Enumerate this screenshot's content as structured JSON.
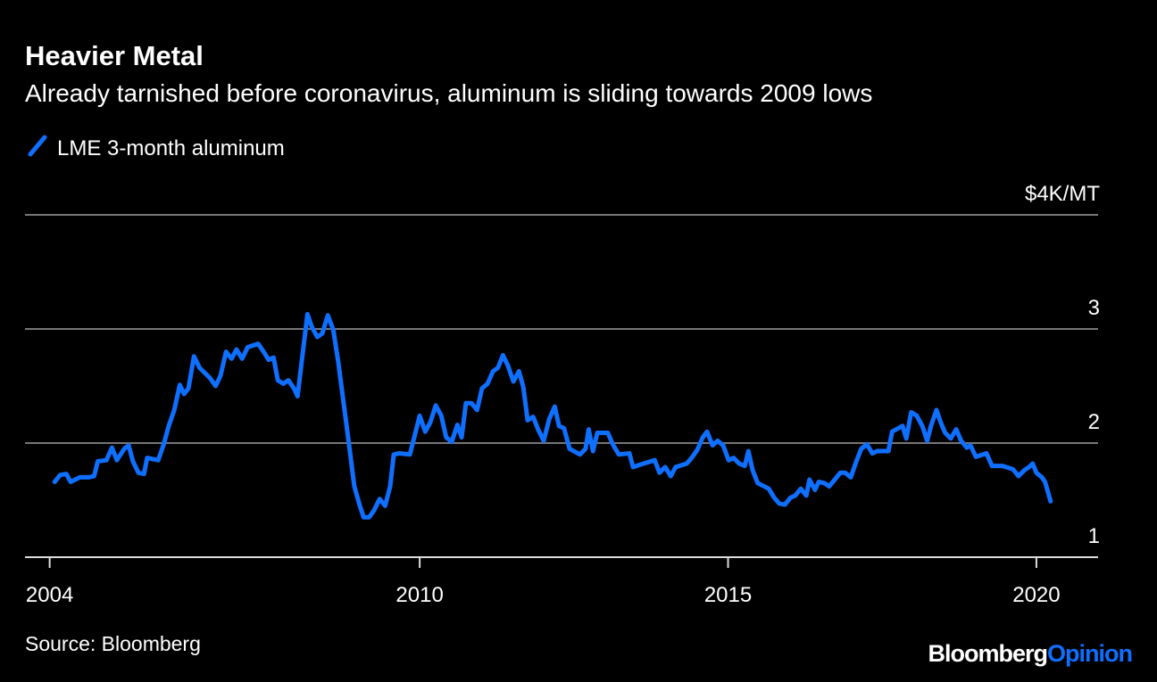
{
  "chart_data": {
    "type": "line",
    "title": "Heavier Metal",
    "subtitle": "Already tarnished before coronavirus, aluminum is sliding towards 2009 lows",
    "source": "Source: Bloomberg",
    "branding": [
      "Bloomberg",
      "Opinion"
    ],
    "x": [
      2004.08,
      2004.17,
      2004.27,
      2004.34,
      2004.49,
      2004.63,
      2004.72,
      2004.78,
      2004.92,
      2005.01,
      2005.09,
      2005.21,
      2005.28,
      2005.35,
      2005.44,
      2005.53,
      2005.58,
      2005.76,
      2005.85,
      2005.93,
      2006.02,
      2006.11,
      2006.18,
      2006.25,
      2006.34,
      2006.43,
      2006.6,
      2006.69,
      2006.77,
      2006.86,
      2006.95,
      2007.03,
      2007.12,
      2007.21,
      2007.38,
      2007.47,
      2007.55,
      2007.63,
      2007.7,
      2007.79,
      2007.87,
      2007.96,
      2008.02,
      2008.09,
      2008.18,
      2008.25,
      2008.34,
      2008.42,
      2008.51,
      2008.6,
      2008.68,
      2008.77,
      2008.86,
      2008.94,
      2009.03,
      2009.09,
      2009.18,
      2009.26,
      2009.35,
      2009.44,
      2009.52,
      2009.58,
      2009.67,
      2009.84,
      2009.93,
      2010.0,
      2010.09,
      2010.17,
      2010.26,
      2010.35,
      2010.43,
      2010.52,
      2010.61,
      2010.68,
      2010.75,
      2010.84,
      2010.93,
      2011.01,
      2011.1,
      2011.19,
      2011.27,
      2011.35,
      2011.43,
      2011.52,
      2011.61,
      2011.68,
      2011.75,
      2011.84,
      2011.92,
      2012.01,
      2012.1,
      2012.19,
      2012.26,
      2012.34,
      2012.43,
      2012.6,
      2012.69,
      2012.74,
      2012.81,
      2012.88,
      2013.05,
      2013.14,
      2013.23,
      2013.4,
      2013.46,
      2013.63,
      2013.81,
      2013.89,
      2013.98,
      2014.07,
      2014.15,
      2014.33,
      2014.41,
      2014.5,
      2014.59,
      2014.66,
      2014.75,
      2014.83,
      2014.92,
      2015.01,
      2015.09,
      2015.18,
      2015.27,
      2015.33,
      2015.4,
      2015.48,
      2015.66,
      2015.75,
      2015.83,
      2015.92,
      2016.01,
      2016.09,
      2016.18,
      2016.27,
      2016.32,
      2016.41,
      2016.47,
      2016.56,
      2016.64,
      2016.73,
      2016.82,
      2016.9,
      2016.99,
      2017.08,
      2017.16,
      2017.25,
      2017.34,
      2017.42,
      2017.6,
      2017.66,
      2017.83,
      2017.89,
      2017.97,
      2018.06,
      2018.15,
      2018.23,
      2018.29,
      2018.38,
      2018.45,
      2018.52,
      2018.61,
      2018.7,
      2018.78,
      2018.87,
      2018.93,
      2019.02,
      2019.19,
      2019.28,
      2019.45,
      2019.62,
      2019.71,
      2019.8,
      2019.88,
      2019.94,
      2020.0,
      2020.09,
      2020.14,
      2020.23
    ],
    "series": [
      {
        "name": "LME 3-month aluminum",
        "color": "#0f6fff",
        "values": [
          1.66,
          1.72,
          1.73,
          1.66,
          1.7,
          1.7,
          1.71,
          1.84,
          1.85,
          1.96,
          1.85,
          1.95,
          1.98,
          1.84,
          1.74,
          1.73,
          1.87,
          1.85,
          1.99,
          2.15,
          2.29,
          2.51,
          2.43,
          2.48,
          2.76,
          2.66,
          2.57,
          2.5,
          2.59,
          2.8,
          2.74,
          2.82,
          2.74,
          2.84,
          2.87,
          2.8,
          2.73,
          2.75,
          2.55,
          2.52,
          2.55,
          2.48,
          2.41,
          2.73,
          3.13,
          3.02,
          2.93,
          2.96,
          3.12,
          2.99,
          2.71,
          2.34,
          1.96,
          1.62,
          1.45,
          1.35,
          1.35,
          1.41,
          1.51,
          1.45,
          1.62,
          1.9,
          1.91,
          1.9,
          2.09,
          2.24,
          2.1,
          2.18,
          2.33,
          2.24,
          2.05,
          2.01,
          2.16,
          2.05,
          2.35,
          2.35,
          2.29,
          2.48,
          2.52,
          2.63,
          2.66,
          2.77,
          2.68,
          2.54,
          2.63,
          2.49,
          2.2,
          2.23,
          2.12,
          2.02,
          2.21,
          2.32,
          2.15,
          2.13,
          1.95,
          1.9,
          1.95,
          2.12,
          1.93,
          2.09,
          2.09,
          1.98,
          1.9,
          1.91,
          1.79,
          1.82,
          1.85,
          1.74,
          1.79,
          1.71,
          1.79,
          1.82,
          1.87,
          1.94,
          2.05,
          2.1,
          1.98,
          2.02,
          1.98,
          1.85,
          1.87,
          1.82,
          1.8,
          1.93,
          1.76,
          1.65,
          1.6,
          1.52,
          1.47,
          1.46,
          1.52,
          1.54,
          1.6,
          1.54,
          1.68,
          1.59,
          1.66,
          1.65,
          1.62,
          1.68,
          1.74,
          1.74,
          1.7,
          1.84,
          1.95,
          1.99,
          1.91,
          1.93,
          1.93,
          2.1,
          2.15,
          2.04,
          2.27,
          2.24,
          2.15,
          2.02,
          2.15,
          2.29,
          2.18,
          2.09,
          2.04,
          2.12,
          2.02,
          1.96,
          1.98,
          1.88,
          1.91,
          1.8,
          1.8,
          1.77,
          1.71,
          1.76,
          1.79,
          1.82,
          1.74,
          1.7,
          1.66,
          1.49
        ]
      }
    ],
    "xlim": [
      2003.6,
      2021.0
    ],
    "xticks": [
      2004,
      2010,
      2015,
      2020
    ],
    "ylim": [
      1,
      4
    ],
    "yticks": [
      {
        "value": 4,
        "label": "$4K/MT"
      },
      3,
      2,
      1
    ],
    "grid": true
  }
}
